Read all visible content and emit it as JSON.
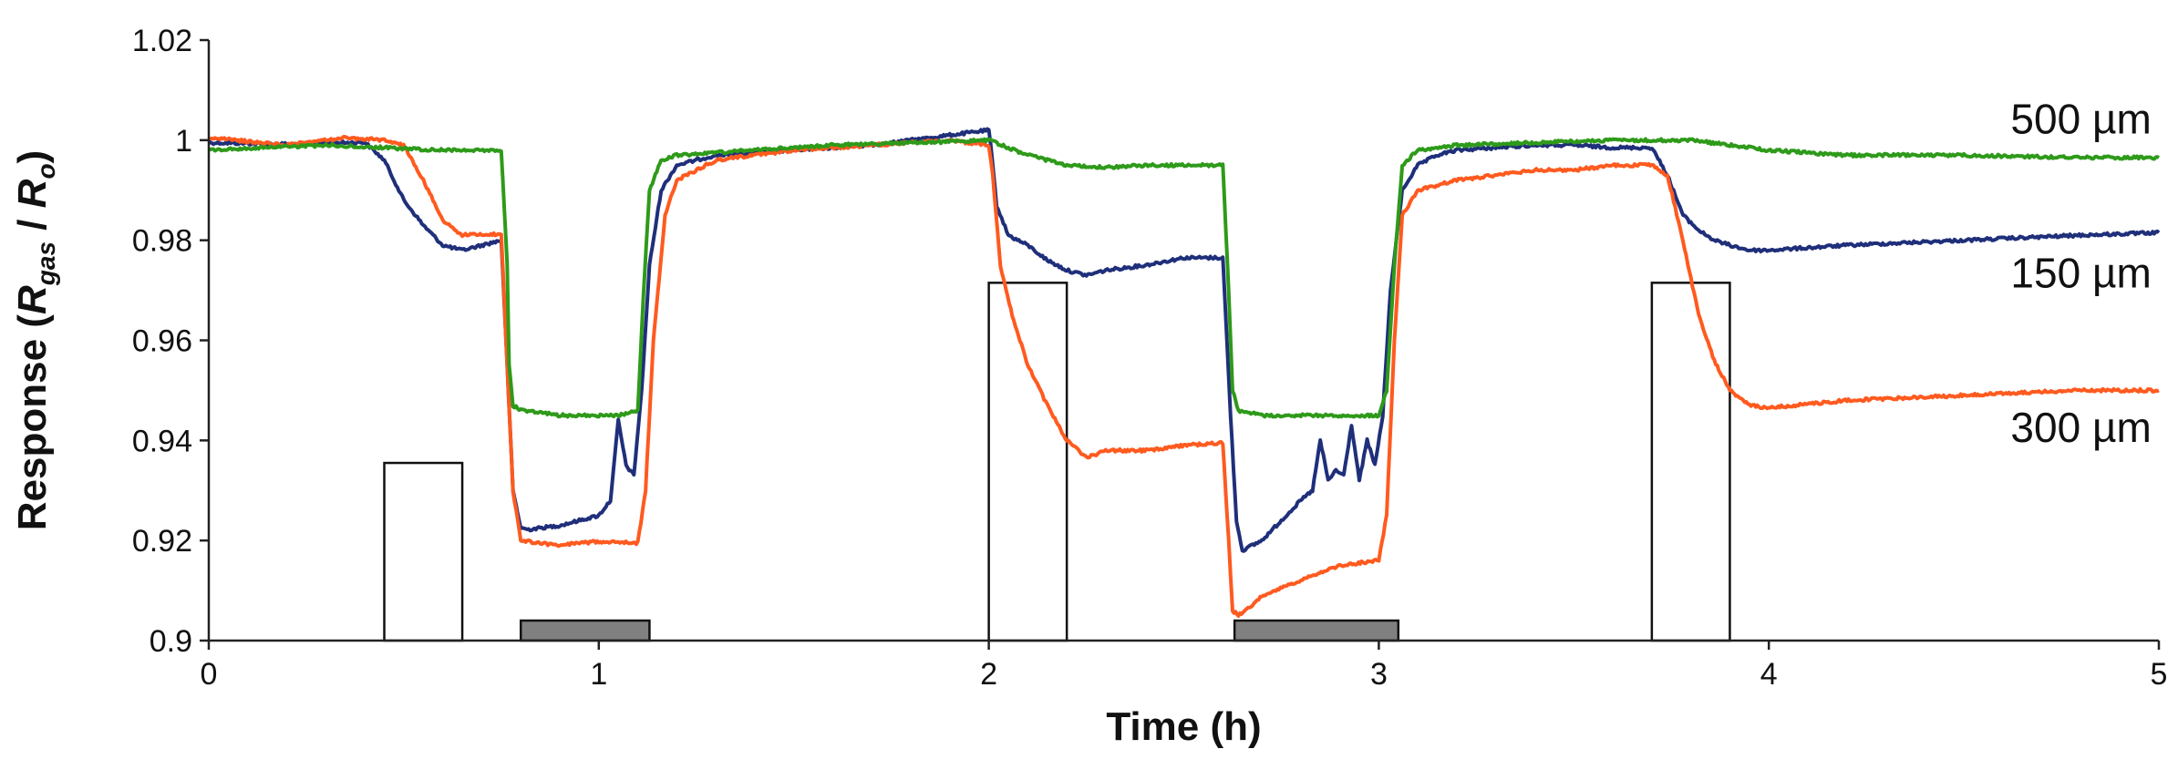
{
  "chart_data": {
    "type": "line",
    "title": "",
    "xlabel": "Time (h)",
    "ylabel_parts": {
      "prefix": "Response (",
      "num": "R",
      "num_sub": "gas",
      "sep": " / ",
      "den": "R",
      "den_sub": "o",
      "suffix": ")"
    },
    "xlim": [
      0,
      5
    ],
    "ylim": [
      0.9,
      1.02
    ],
    "xticks": [
      0,
      1,
      2,
      3,
      4,
      5
    ],
    "xtick_labels": [
      "0",
      "1",
      "2",
      "3",
      "4",
      "5"
    ],
    "yticks": [
      0.9,
      0.92,
      0.94,
      0.96,
      0.98,
      1.0,
      1.02
    ],
    "ytick_labels": [
      "0.9",
      "0.92",
      "0.94",
      "0.96",
      "0.98",
      "1",
      "1.02"
    ],
    "grid": false,
    "series": [
      {
        "name": "150 µm",
        "color": "#1f2f7a",
        "label_at": {
          "x": 4.62,
          "y": 0.9706
        },
        "x": [
          0,
          0.2,
          0.4,
          0.45,
          0.5,
          0.55,
          0.6,
          0.65,
          0.7,
          0.75,
          0.765,
          0.78,
          0.8,
          0.82,
          0.85,
          0.9,
          0.95,
          1.0,
          1.03,
          1.05,
          1.07,
          1.09,
          1.11,
          1.13,
          1.16,
          1.2,
          1.3,
          1.5,
          1.7,
          1.9,
          2.0,
          2.005,
          2.02,
          2.05,
          2.1,
          2.15,
          2.2,
          2.25,
          2.3,
          2.4,
          2.5,
          2.6,
          2.62,
          2.635,
          2.65,
          2.7,
          2.75,
          2.8,
          2.83,
          2.85,
          2.87,
          2.89,
          2.91,
          2.93,
          2.95,
          2.97,
          2.99,
          3.01,
          3.03,
          3.06,
          3.1,
          3.15,
          3.2,
          3.3,
          3.4,
          3.5,
          3.6,
          3.7,
          3.74,
          3.78,
          3.82,
          3.86,
          3.9,
          3.95,
          4.0,
          4.2,
          4.5,
          4.8,
          5.0
        ],
        "y": [
          0.9995,
          0.9992,
          0.9996,
          0.996,
          0.988,
          0.983,
          0.979,
          0.978,
          0.979,
          0.98,
          0.955,
          0.93,
          0.9225,
          0.9222,
          0.9225,
          0.923,
          0.924,
          0.925,
          0.928,
          0.944,
          0.935,
          0.933,
          0.95,
          0.975,
          0.99,
          0.995,
          0.997,
          0.998,
          0.999,
          1.001,
          1.002,
          0.999,
          0.987,
          0.981,
          0.979,
          0.976,
          0.974,
          0.973,
          0.974,
          0.975,
          0.9765,
          0.9765,
          0.945,
          0.924,
          0.918,
          0.92,
          0.924,
          0.928,
          0.93,
          0.94,
          0.932,
          0.934,
          0.933,
          0.943,
          0.932,
          0.94,
          0.935,
          0.945,
          0.97,
          0.99,
          0.995,
          0.997,
          0.998,
          0.9985,
          0.999,
          0.999,
          0.9985,
          0.9985,
          0.993,
          0.985,
          0.982,
          0.98,
          0.979,
          0.978,
          0.978,
          0.979,
          0.98,
          0.981,
          0.9815
        ]
      },
      {
        "name": "300 µm",
        "color": "#ff5a1f",
        "label_at": {
          "x": 4.62,
          "y": 0.9397
        },
        "x": [
          0,
          0.2,
          0.35,
          0.45,
          0.5,
          0.55,
          0.6,
          0.65,
          0.7,
          0.75,
          0.765,
          0.78,
          0.8,
          0.85,
          0.9,
          0.95,
          1.0,
          1.05,
          1.1,
          1.12,
          1.14,
          1.17,
          1.2,
          1.3,
          1.5,
          1.7,
          1.9,
          2.0,
          2.01,
          2.03,
          2.06,
          2.1,
          2.15,
          2.2,
          2.25,
          2.3,
          2.4,
          2.5,
          2.6,
          2.615,
          2.625,
          2.64,
          2.66,
          2.7,
          2.8,
          2.9,
          3.0,
          3.02,
          3.04,
          3.06,
          3.1,
          3.2,
          3.3,
          3.4,
          3.5,
          3.6,
          3.7,
          3.74,
          3.78,
          3.82,
          3.86,
          3.9,
          3.95,
          4.0,
          4.2,
          4.5,
          4.8,
          5.0
        ],
        "y": [
          1.0005,
          0.999,
          1.0005,
          1.0,
          0.999,
          0.992,
          0.984,
          0.981,
          0.9812,
          0.9812,
          0.955,
          0.93,
          0.92,
          0.9195,
          0.919,
          0.9195,
          0.9198,
          0.9198,
          0.9195,
          0.93,
          0.96,
          0.985,
          0.992,
          0.996,
          0.998,
          0.999,
          1.0,
          0.999,
          0.993,
          0.975,
          0.965,
          0.955,
          0.947,
          0.94,
          0.9365,
          0.938,
          0.938,
          0.939,
          0.9395,
          0.92,
          0.906,
          0.905,
          0.906,
          0.909,
          0.912,
          0.915,
          0.916,
          0.925,
          0.96,
          0.985,
          0.99,
          0.992,
          0.993,
          0.994,
          0.994,
          0.995,
          0.995,
          0.993,
          0.98,
          0.965,
          0.956,
          0.95,
          0.947,
          0.9465,
          0.948,
          0.949,
          0.95,
          0.95
        ]
      },
      {
        "name": "500 µm",
        "color": "#2e9a1a",
        "label_at": {
          "x": 4.62,
          "y": 1.0013
        },
        "x": [
          0,
          0.3,
          0.6,
          0.75,
          0.765,
          0.77,
          0.78,
          0.8,
          0.9,
          1.0,
          1.05,
          1.1,
          1.115,
          1.13,
          1.16,
          1.2,
          1.4,
          1.6,
          1.8,
          1.95,
          2.0,
          2.05,
          2.1,
          2.15,
          2.2,
          2.3,
          2.4,
          2.5,
          2.6,
          2.615,
          2.625,
          2.64,
          2.7,
          2.8,
          2.9,
          3.0,
          3.02,
          3.04,
          3.06,
          3.1,
          3.2,
          3.4,
          3.6,
          3.8,
          4.0,
          4.2,
          4.5,
          4.8,
          5.0
        ],
        "y": [
          0.998,
          0.999,
          0.998,
          0.998,
          0.975,
          0.955,
          0.947,
          0.946,
          0.945,
          0.945,
          0.945,
          0.946,
          0.97,
          0.99,
          0.996,
          0.997,
          0.998,
          0.999,
          0.9995,
          0.9998,
          1.0,
          0.9985,
          0.997,
          0.996,
          0.995,
          0.9945,
          0.995,
          0.995,
          0.995,
          0.97,
          0.95,
          0.946,
          0.945,
          0.945,
          0.945,
          0.945,
          0.95,
          0.975,
          0.995,
          0.998,
          0.999,
          0.9995,
          1.0,
          1.0,
          0.998,
          0.997,
          0.997,
          0.9965,
          0.9965
        ]
      }
    ],
    "exposure_bars": [
      {
        "kind": "open",
        "x0": 0.45,
        "x1": 0.65,
        "top": 0.9355
      },
      {
        "kind": "filled",
        "x0": 0.8,
        "x1": 1.13,
        "top": 0.904
      },
      {
        "kind": "open",
        "x0": 2.0,
        "x1": 2.2,
        "top": 0.9715
      },
      {
        "kind": "filled",
        "x0": 2.63,
        "x1": 3.05,
        "top": 0.904
      },
      {
        "kind": "open",
        "x0": 3.7,
        "x1": 3.9,
        "top": 0.9715
      }
    ]
  }
}
